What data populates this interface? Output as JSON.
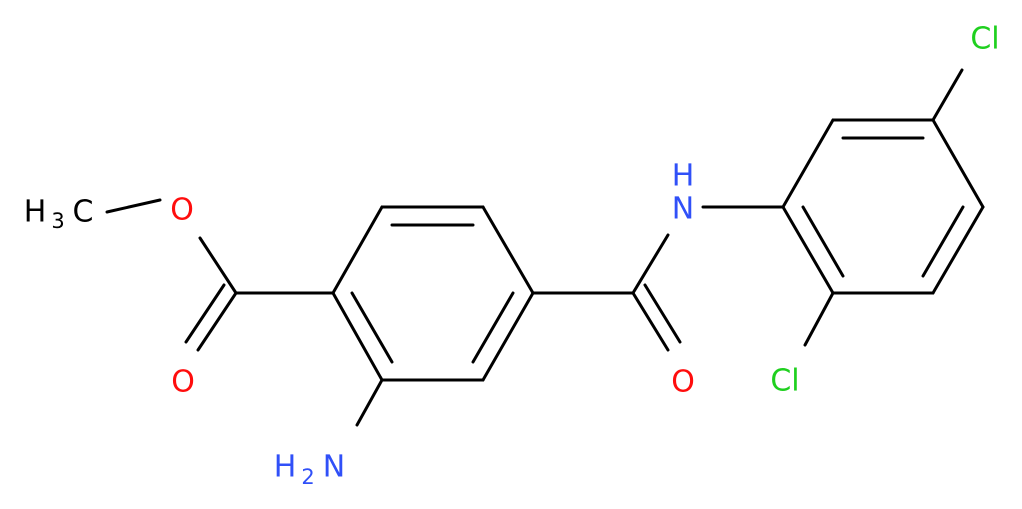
{
  "molecule": {
    "methyl": {
      "h": "H",
      "count": "3",
      "c": "C"
    },
    "ester_oxygen": "O",
    "carbonyl_oxygen_1": "O",
    "amine": {
      "h": "H",
      "count": "2",
      "n": "N"
    },
    "carbonyl_oxygen_2": "O",
    "amide": {
      "h": "H",
      "n": "N"
    },
    "chlorine_1": "Cl",
    "chlorine_2": "Cl"
  }
}
